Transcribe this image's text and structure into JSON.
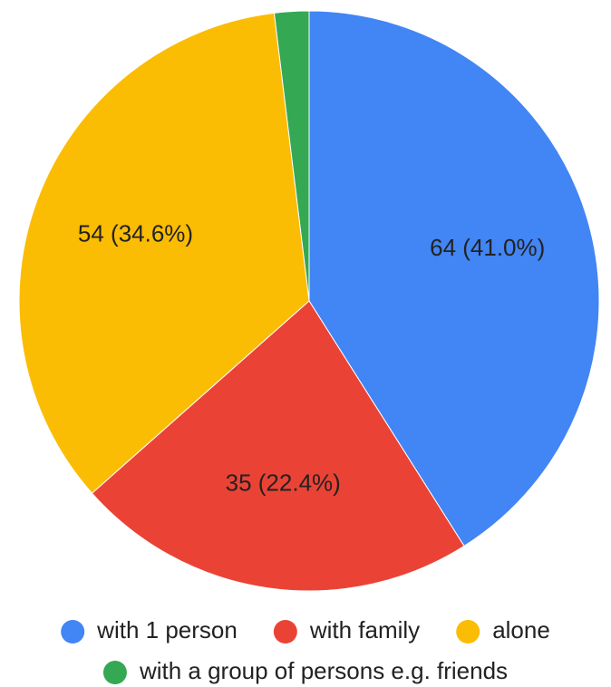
{
  "chart_data": {
    "type": "pie",
    "categories": [
      "with 1 person",
      "with family",
      "alone",
      "with a group of persons e.g. friends"
    ],
    "values": [
      64,
      35,
      54,
      3
    ],
    "value_labels": [
      "64 (41.0%)",
      "35 (22.4%)",
      "54 (34.6%)",
      null
    ],
    "colors": [
      "#4285f4",
      "#ea4335",
      "#fbbc04",
      "#34a853"
    ],
    "legend": "bottom"
  }
}
